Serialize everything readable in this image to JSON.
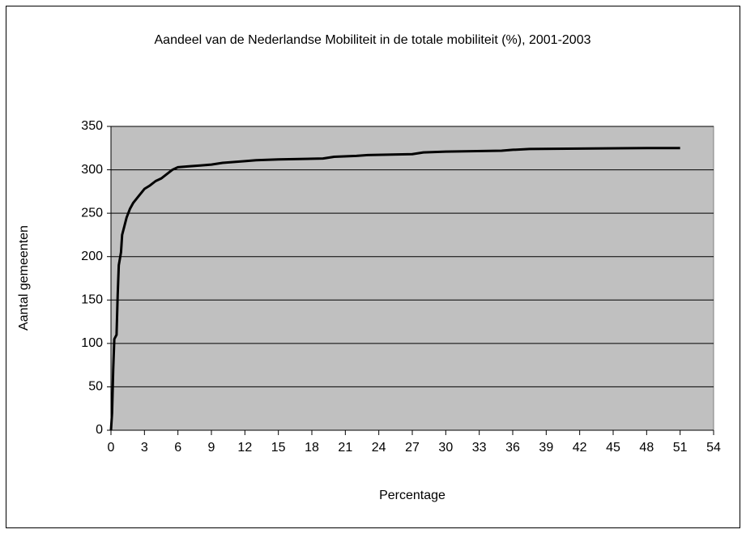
{
  "chart_data": {
    "type": "line",
    "title": "Aandeel van de Nederlandse Mobiliteit in de totale mobiliteit (%), 2001-2003",
    "x_label": "Percentage",
    "y_label": "Aantal gemeenten",
    "x": [
      0,
      0.1,
      0.2,
      0.3,
      0.5,
      0.6,
      0.7,
      0.9,
      1.0,
      1.2,
      1.4,
      1.7,
      2.0,
      2.5,
      3,
      3.5,
      4,
      4.5,
      5,
      5.5,
      6,
      7,
      8,
      9,
      10,
      12,
      13,
      15,
      19,
      20,
      22,
      23,
      27,
      28,
      30,
      35,
      36,
      37.5,
      48,
      51
    ],
    "series": [
      {
        "name": "Aantal gemeenten",
        "color": "#000000",
        "values": [
          0,
          20,
          70,
          105,
          110,
          155,
          190,
          205,
          225,
          235,
          245,
          255,
          262,
          270,
          278,
          282,
          287,
          290,
          295,
          300,
          303,
          304,
          305,
          306,
          308,
          310,
          311,
          312,
          313,
          315,
          316,
          317,
          318,
          320,
          321,
          322,
          323,
          324,
          325,
          325
        ]
      }
    ],
    "xlim": [
      0,
      54
    ],
    "xticks": [
      0,
      3,
      6,
      9,
      12,
      15,
      18,
      21,
      24,
      27,
      30,
      33,
      36,
      39,
      42,
      45,
      48,
      51,
      54
    ],
    "ylim": [
      0,
      350
    ],
    "yticks": [
      0,
      50,
      100,
      150,
      200,
      250,
      300,
      350
    ],
    "grid": true,
    "plot_background": "#c0c0c0"
  }
}
